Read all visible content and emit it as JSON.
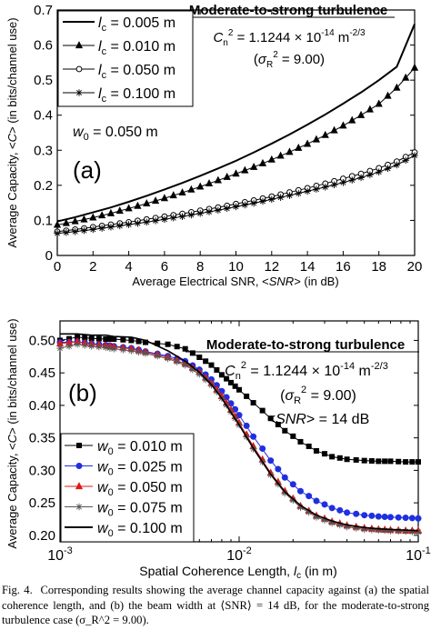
{
  "chart_data": [
    {
      "type": "line",
      "panel_label": "(a)",
      "title": "Moderate-to-strong turbulence",
      "annotations": [
        "C_n^2 = 1.1244 × 10^-14 m^-2/3",
        "(σ_R^2 = 9.00)",
        "w_0 = 0.050 m"
      ],
      "xlabel": "Average Electrical SNR, <SNR> (in dB)",
      "ylabel": "Average Capacity, <C> (in bits/channel use)",
      "xlim": [
        0,
        20
      ],
      "ylim": [
        0,
        0.7
      ],
      "xticks": [
        "0",
        "2",
        "4",
        "6",
        "8",
        "10",
        "12",
        "14",
        "16",
        "18",
        "20"
      ],
      "yticks": [
        "0",
        "0.1",
        "0.2",
        "0.3",
        "0.4",
        "0.5",
        "0.6",
        "0.7"
      ],
      "legend": "top-left",
      "grid": false,
      "x": [
        0,
        1,
        2,
        3,
        4,
        5,
        6,
        7,
        8,
        9,
        10,
        11,
        12,
        13,
        14,
        15,
        16,
        17,
        18,
        19,
        20
      ],
      "series": [
        {
          "name": "l_c = 0.005 m",
          "marker": "none",
          "color": "#000000",
          "values": [
            0.097,
            0.109,
            0.123,
            0.137,
            0.153,
            0.17,
            0.188,
            0.207,
            0.227,
            0.248,
            0.27,
            0.294,
            0.319,
            0.345,
            0.373,
            0.402,
            0.433,
            0.465,
            0.5,
            0.538,
            0.66
          ]
        },
        {
          "name": "l_c = 0.010 m",
          "marker": "triangle",
          "color": "#000000",
          "values": [
            0.087,
            0.097,
            0.108,
            0.12,
            0.134,
            0.148,
            0.163,
            0.179,
            0.196,
            0.214,
            0.233,
            0.252,
            0.273,
            0.295,
            0.318,
            0.343,
            0.37,
            0.4,
            0.432,
            0.478,
            0.535
          ]
        },
        {
          "name": "l_c = 0.050 m",
          "marker": "circle",
          "color": "#000000",
          "values": [
            0.068,
            0.074,
            0.081,
            0.088,
            0.095,
            0.103,
            0.111,
            0.119,
            0.128,
            0.137,
            0.147,
            0.157,
            0.168,
            0.18,
            0.192,
            0.205,
            0.219,
            0.233,
            0.249,
            0.268,
            0.294
          ]
        },
        {
          "name": "l_c = 0.100 m",
          "marker": "asterisk",
          "color": "#000000",
          "values": [
            0.063,
            0.068,
            0.074,
            0.081,
            0.088,
            0.095,
            0.103,
            0.111,
            0.12,
            0.129,
            0.139,
            0.149,
            0.16,
            0.171,
            0.183,
            0.195,
            0.208,
            0.222,
            0.238,
            0.258,
            0.285
          ]
        }
      ]
    },
    {
      "type": "line",
      "panel_label": "(b)",
      "title": "Moderate-to-strong turbulence",
      "annotations": [
        "C_n^2 = 1.1244 × 10^-14 m^-2/3",
        "(σ_R^2 = 9.00)",
        "<SNR> = 14 dB"
      ],
      "xlabel": "Spatial Coherence Length, l_c (in m)",
      "ylabel": "Average Capacity, <C> (in bits/channel use)",
      "xscale": "log",
      "xlim": [
        0.001,
        0.1
      ],
      "ylim": [
        0.19,
        0.53
      ],
      "xticks": [
        "10^-3",
        "10^-2",
        "10^-1"
      ],
      "yticks": [
        "0.20",
        "0.25",
        "0.30",
        "0.35",
        "0.40",
        "0.45",
        "0.50"
      ],
      "legend": "bottom-left",
      "grid": false,
      "x": [
        0.001,
        0.00125,
        0.0015,
        0.0018,
        0.002,
        0.0025,
        0.003,
        0.004,
        0.005,
        0.006,
        0.007,
        0.008,
        0.009,
        0.01,
        0.012,
        0.015,
        0.018,
        0.022,
        0.027,
        0.033,
        0.04,
        0.05,
        0.06,
        0.07,
        0.085,
        0.1
      ],
      "series": [
        {
          "name": "w_0 = 0.010 m",
          "marker": "square",
          "color": "#000000",
          "values": [
            0.5,
            0.505,
            0.503,
            0.502,
            0.502,
            0.5,
            0.497,
            0.494,
            0.487,
            0.474,
            0.462,
            0.447,
            0.435,
            0.424,
            0.404,
            0.38,
            0.361,
            0.344,
            0.33,
            0.321,
            0.317,
            0.315,
            0.314,
            0.314,
            0.313,
            0.313
          ]
        },
        {
          "name": "w_0 = 0.025 m",
          "marker": "circle-filled",
          "color": "#1f2fe0",
          "values": [
            0.497,
            0.498,
            0.495,
            0.493,
            0.491,
            0.488,
            0.483,
            0.476,
            0.468,
            0.455,
            0.44,
            0.422,
            0.403,
            0.385,
            0.352,
            0.315,
            0.289,
            0.268,
            0.253,
            0.242,
            0.235,
            0.231,
            0.229,
            0.228,
            0.227,
            0.226
          ]
        },
        {
          "name": "w_0 = 0.050 m",
          "marker": "triangle",
          "color": "#e01818",
          "values": [
            0.495,
            0.498,
            0.494,
            0.492,
            0.49,
            0.487,
            0.482,
            0.474,
            0.464,
            0.451,
            0.434,
            0.414,
            0.393,
            0.373,
            0.337,
            0.296,
            0.268,
            0.245,
            0.23,
            0.221,
            0.215,
            0.211,
            0.209,
            0.208,
            0.207,
            0.207
          ]
        },
        {
          "name": "w_0 = 0.075 m",
          "marker": "asterisk",
          "color": "#555555",
          "values": [
            0.488,
            0.494,
            0.491,
            0.489,
            0.487,
            0.484,
            0.48,
            0.472,
            0.462,
            0.448,
            0.431,
            0.411,
            0.39,
            0.37,
            0.333,
            0.293,
            0.265,
            0.243,
            0.228,
            0.219,
            0.213,
            0.209,
            0.208,
            0.207,
            0.206,
            0.205
          ]
        },
        {
          "name": "w_0 = 0.100 m",
          "marker": "none",
          "color": "#000000",
          "values": [
            0.51,
            0.51,
            0.508,
            0.508,
            0.506,
            0.505,
            0.5,
            0.484,
            0.468,
            0.451,
            0.432,
            0.411,
            0.389,
            0.37,
            0.334,
            0.294,
            0.267,
            0.246,
            0.231,
            0.222,
            0.216,
            0.212,
            0.21,
            0.209,
            0.208,
            0.207
          ]
        }
      ]
    }
  ],
  "caption": {
    "label": "Fig. 4.",
    "text": "Corresponding results showing the average channel capacity against (a) the spatial coherence length, and (b) the beam width at ⟨SNR⟩ = 14 dB, for the moderate-to-strong turbulence case (σ_R^2 = 9.00)."
  }
}
